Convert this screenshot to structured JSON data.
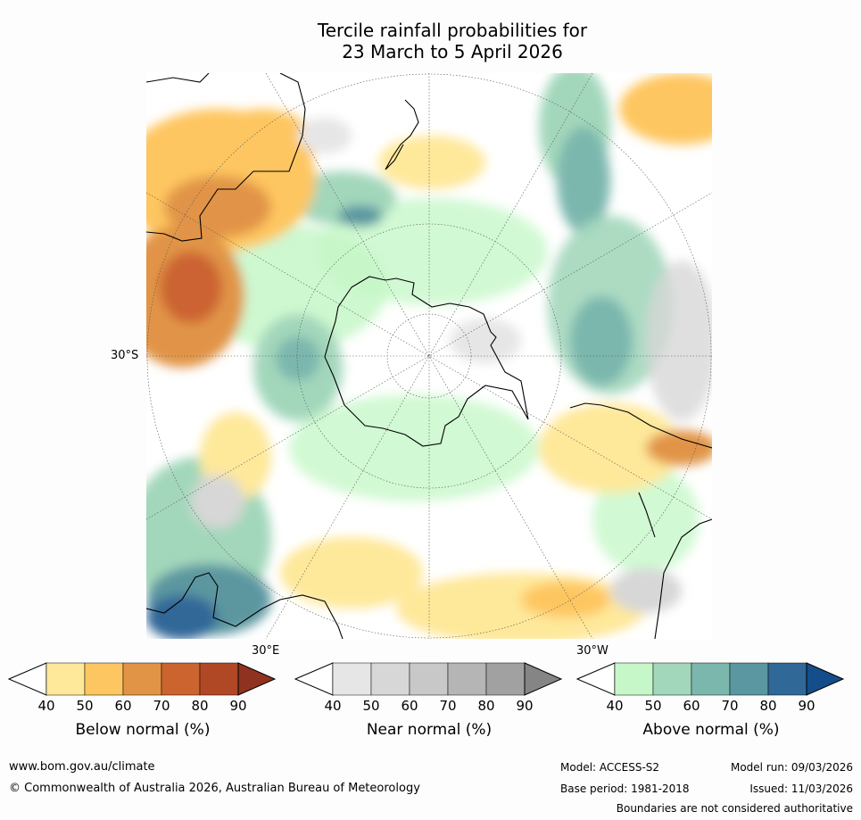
{
  "title": {
    "line1": "Tercile rainfall probabilities for",
    "line2": "23 March to 5 April 2026"
  },
  "map_labels": {
    "lat_30s": "30°S",
    "lon_30e": "30°E",
    "lon_30w": "30°W"
  },
  "colorbars": [
    {
      "label": "Below normal (%)",
      "ticks": [
        "40",
        "50",
        "60",
        "70",
        "80",
        "90"
      ],
      "colors": [
        "#ffffff",
        "#fee89a",
        "#fec661",
        "#e19446",
        "#cc6430",
        "#b04826",
        "#8f3220"
      ]
    },
    {
      "label": "Near normal (%)",
      "ticks": [
        "40",
        "50",
        "60",
        "70",
        "80",
        "90"
      ],
      "colors": [
        "#ffffff",
        "#e6e6e6",
        "#d7d7d7",
        "#c8c8c8",
        "#b5b5b5",
        "#a1a1a1",
        "#858585"
      ]
    },
    {
      "label": "Above normal (%)",
      "ticks": [
        "40",
        "50",
        "60",
        "70",
        "80",
        "90"
      ],
      "colors": [
        "#ffffff",
        "#c5f7c8",
        "#a3d7bb",
        "#7cb7ae",
        "#5b97a0",
        "#306898",
        "#144e8a"
      ]
    }
  ],
  "footer": {
    "website": "www.bom.gov.au/climate",
    "copyright": "© Commonwealth of Australia 2026, Australian Bureau of Meteorology",
    "model": "Model: ACCESS-S2",
    "base_period": "Base period: 1981-2018",
    "model_run": "Model run: 09/03/2026",
    "issued": "Issued: 11/03/2026",
    "disclaimer": "Boundaries are not considered authoritative"
  }
}
